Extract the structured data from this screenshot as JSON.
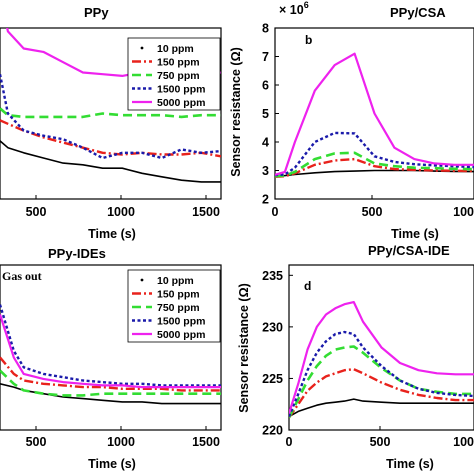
{
  "legend_entries": [
    "10 ppm",
    "150 ppm",
    "750 ppm",
    "1500 ppm",
    "5000 ppm"
  ],
  "series_colors": [
    "#000000",
    "#e8221c",
    "#33dd33",
    "#1a1aaa",
    "#ee22ee"
  ],
  "chart_data": [
    {
      "type": "line",
      "title": "PPy",
      "xlabel": "Time (s)",
      "xticks": [
        "500",
        "1000",
        "1500"
      ],
      "xlim": [
        380,
        1500
      ],
      "ylim": [
        0,
        1
      ],
      "legend_position": "top-right",
      "series": [
        {
          "name": "10 ppm",
          "x": [
            380,
            420,
            500,
            600,
            700,
            800,
            900,
            1000,
            1100,
            1200,
            1300,
            1400,
            1500
          ],
          "y": [
            0.34,
            0.3,
            0.27,
            0.24,
            0.21,
            0.2,
            0.18,
            0.18,
            0.15,
            0.13,
            0.11,
            0.1,
            0.1
          ]
        },
        {
          "name": "150 ppm",
          "x": [
            380,
            420,
            500,
            600,
            700,
            800,
            900,
            1000,
            1100,
            1200,
            1300,
            1400,
            1500
          ],
          "y": [
            0.46,
            0.44,
            0.4,
            0.36,
            0.33,
            0.3,
            0.27,
            0.26,
            0.27,
            0.26,
            0.26,
            0.27,
            0.25
          ]
        },
        {
          "name": "750 ppm",
          "x": [
            380,
            420,
            500,
            600,
            700,
            800,
            900,
            1000,
            1100,
            1200,
            1300,
            1400,
            1500
          ],
          "y": [
            0.53,
            0.49,
            0.48,
            0.48,
            0.48,
            0.48,
            0.5,
            0.49,
            0.49,
            0.49,
            0.48,
            0.49,
            0.49
          ]
        },
        {
          "name": "1500 ppm",
          "x": [
            380,
            420,
            500,
            600,
            700,
            800,
            900,
            1000,
            1100,
            1200,
            1300,
            1400,
            1500
          ],
          "y": [
            0.73,
            0.5,
            0.4,
            0.37,
            0.35,
            0.3,
            0.24,
            0.27,
            0.27,
            0.24,
            0.29,
            0.27,
            0.28
          ]
        },
        {
          "name": "5000 ppm",
          "x": [
            380,
            420,
            500,
            600,
            700,
            800,
            900,
            1000,
            1100,
            1200,
            1300,
            1400,
            1500
          ],
          "y": [
            1.2,
            0.98,
            0.88,
            0.86,
            0.8,
            0.74,
            0.73,
            0.72,
            0.74,
            0.71,
            0.74,
            0.72,
            0.74
          ]
        }
      ]
    },
    {
      "type": "line",
      "title": "PPy/CSA",
      "panel_letter": "b",
      "xlabel": "Time (s)",
      "ylabel": "Sensor resistance (Ω)",
      "y_multiplier": "× 10",
      "y_multiplier_exp": "6",
      "xticks": [
        "0",
        "500",
        "100"
      ],
      "xlim": [
        0,
        1000
      ],
      "yticks": [
        "2",
        "3",
        "4",
        "5",
        "6",
        "7",
        "8"
      ],
      "ylim": [
        2,
        8
      ],
      "legend_position": "none",
      "series": [
        {
          "name": "10 ppm",
          "x": [
            0,
            50,
            100,
            200,
            300,
            400,
            500,
            600,
            700,
            800,
            900,
            1000
          ],
          "y": [
            2.8,
            2.82,
            2.86,
            2.92,
            2.96,
            2.98,
            3.0,
            3.0,
            3.0,
            2.98,
            2.97,
            2.96
          ]
        },
        {
          "name": "150 ppm",
          "x": [
            0,
            50,
            100,
            200,
            300,
            400,
            500,
            600,
            700,
            800,
            900,
            1000
          ],
          "y": [
            2.78,
            2.8,
            2.9,
            3.2,
            3.35,
            3.4,
            3.15,
            3.05,
            3.02,
            3.0,
            2.99,
            2.98
          ]
        },
        {
          "name": "750 ppm",
          "x": [
            0,
            50,
            100,
            200,
            300,
            400,
            500,
            600,
            700,
            800,
            900,
            1000
          ],
          "y": [
            2.8,
            2.82,
            2.95,
            3.4,
            3.6,
            3.62,
            3.25,
            3.15,
            3.1,
            3.08,
            3.06,
            3.05
          ]
        },
        {
          "name": "1500 ppm",
          "x": [
            0,
            50,
            100,
            200,
            300,
            400,
            500,
            600,
            700,
            800,
            900,
            1000
          ],
          "y": [
            2.84,
            2.86,
            3.1,
            4.0,
            4.32,
            4.3,
            3.5,
            3.3,
            3.22,
            3.18,
            3.15,
            3.12
          ]
        },
        {
          "name": "5000 ppm",
          "x": [
            0,
            50,
            100,
            200,
            300,
            400,
            500,
            600,
            700,
            800,
            900,
            1000
          ],
          "y": [
            2.85,
            2.95,
            4.0,
            5.8,
            6.7,
            7.1,
            5.0,
            3.8,
            3.4,
            3.25,
            3.2,
            3.2
          ]
        }
      ]
    },
    {
      "type": "line",
      "title": "PPy-IDEs",
      "annotation": "Gas out",
      "xlabel": "Time (s)",
      "xticks": [
        "500",
        "1000",
        "1500"
      ],
      "xlim": [
        380,
        1500
      ],
      "ylim": [
        0,
        1
      ],
      "legend_position": "top-right",
      "series": [
        {
          "name": "10 ppm",
          "x": [
            380,
            450,
            500,
            600,
            700,
            800,
            900,
            1000,
            1100,
            1200,
            1300,
            1400,
            1500
          ],
          "y": [
            0.28,
            0.26,
            0.24,
            0.22,
            0.2,
            0.19,
            0.18,
            0.17,
            0.17,
            0.16,
            0.16,
            0.16,
            0.16
          ]
        },
        {
          "name": "150 ppm",
          "x": [
            380,
            450,
            500,
            600,
            700,
            800,
            900,
            1000,
            1100,
            1200,
            1300,
            1400,
            1500
          ],
          "y": [
            0.44,
            0.34,
            0.3,
            0.28,
            0.27,
            0.26,
            0.26,
            0.25,
            0.25,
            0.25,
            0.24,
            0.24,
            0.24
          ]
        },
        {
          "name": "750 ppm",
          "x": [
            380,
            450,
            500,
            600,
            700,
            800,
            900,
            1000,
            1100,
            1200,
            1300,
            1400,
            1500
          ],
          "y": [
            0.36,
            0.28,
            0.24,
            0.22,
            0.21,
            0.21,
            0.22,
            0.22,
            0.22,
            0.22,
            0.22,
            0.22,
            0.22
          ]
        },
        {
          "name": "1500 ppm",
          "x": [
            380,
            450,
            500,
            600,
            700,
            800,
            900,
            1000,
            1100,
            1200,
            1300,
            1400,
            1500
          ],
          "y": [
            0.76,
            0.48,
            0.38,
            0.34,
            0.32,
            0.3,
            0.29,
            0.28,
            0.28,
            0.27,
            0.27,
            0.27,
            0.27
          ]
        },
        {
          "name": "5000 ppm",
          "x": [
            380,
            450,
            500,
            600,
            700,
            800,
            900,
            1000,
            1100,
            1200,
            1300,
            1400,
            1500
          ],
          "y": [
            0.7,
            0.44,
            0.34,
            0.31,
            0.29,
            0.28,
            0.27,
            0.27,
            0.26,
            0.26,
            0.26,
            0.26,
            0.26
          ]
        }
      ]
    },
    {
      "type": "line",
      "title": "PPy/CSA-IDE",
      "panel_letter": "d",
      "xlabel": "Time (s)",
      "ylabel": "Sensor resistance (Ω)",
      "xticks": [
        "0",
        "500",
        "100"
      ],
      "xlim": [
        0,
        1000
      ],
      "yticks": [
        "220",
        "225",
        "230",
        "235"
      ],
      "ylim": [
        220,
        236
      ],
      "legend_position": "none",
      "series": [
        {
          "name": "10 ppm",
          "x": [
            0,
            50,
            100,
            150,
            200,
            250,
            300,
            350,
            400,
            500,
            600,
            700,
            800,
            900,
            1000
          ],
          "y": [
            221.3,
            221.8,
            222.1,
            222.4,
            222.6,
            222.7,
            222.8,
            223.0,
            222.8,
            222.7,
            222.6,
            222.6,
            222.6,
            222.6,
            222.6
          ]
        },
        {
          "name": "150 ppm",
          "x": [
            0,
            50,
            100,
            150,
            200,
            250,
            300,
            350,
            400,
            500,
            600,
            700,
            800,
            900,
            1000
          ],
          "y": [
            221.2,
            222.5,
            223.8,
            224.6,
            225.2,
            225.5,
            225.8,
            225.9,
            225.5,
            224.6,
            223.9,
            223.4,
            223.1,
            222.9,
            222.9
          ]
        },
        {
          "name": "750 ppm",
          "x": [
            0,
            50,
            100,
            150,
            200,
            250,
            300,
            350,
            400,
            500,
            600,
            700,
            800,
            900,
            1000
          ],
          "y": [
            221.2,
            223.0,
            224.8,
            226.2,
            227.2,
            227.8,
            228.0,
            228.1,
            227.5,
            226.0,
            224.8,
            224.0,
            223.7,
            223.5,
            223.5
          ]
        },
        {
          "name": "1500 ppm",
          "x": [
            0,
            50,
            100,
            150,
            200,
            250,
            300,
            350,
            400,
            500,
            600,
            700,
            800,
            900,
            1000
          ],
          "y": [
            221.3,
            223.5,
            225.8,
            227.5,
            228.6,
            229.3,
            229.5,
            229.3,
            228.0,
            226.2,
            224.8,
            224.0,
            223.6,
            223.4,
            223.3
          ]
        },
        {
          "name": "5000 ppm",
          "x": [
            0,
            50,
            100,
            150,
            200,
            250,
            300,
            350,
            400,
            500,
            600,
            700,
            800,
            900,
            1000
          ],
          "y": [
            221.6,
            224.5,
            227.8,
            230.0,
            231.2,
            231.8,
            232.2,
            232.4,
            230.5,
            228.0,
            226.5,
            225.8,
            225.5,
            225.4,
            225.4
          ]
        }
      ]
    }
  ]
}
